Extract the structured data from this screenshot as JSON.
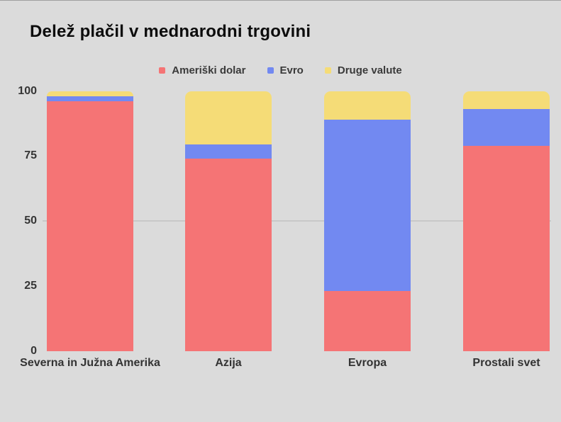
{
  "page": {
    "background": "#dbdbdb"
  },
  "title": "Delež plačil v mednarodni trgovini",
  "legend": {
    "items": [
      "Ameriški dolar",
      "Evro",
      "Druge valute"
    ]
  },
  "chart_data": {
    "type": "bar",
    "stacked": true,
    "title": "Delež plačil v mednarodni trgovini",
    "categories": [
      "Severna in Južna Amerika",
      "Azija",
      "Evropa",
      "Prostali svet"
    ],
    "series": [
      {
        "name": "Ameriški dolar",
        "color": "#f57475",
        "values": [
          96,
          74,
          23,
          79
        ]
      },
      {
        "name": "Evro",
        "color": "#7289f1",
        "values": [
          2,
          5.5,
          66,
          14
        ]
      },
      {
        "name": "Druge valute",
        "color": "#f5dc77",
        "values": [
          2,
          20.5,
          11,
          7
        ]
      }
    ],
    "xlabel": "",
    "ylabel": "",
    "ylim": [
      0,
      100
    ],
    "y_ticks": [
      0,
      25,
      50,
      75,
      100
    ],
    "grid_values": [
      50
    ],
    "grid_color": "#c8c8c8",
    "legend_position": "top",
    "text_color": "#3a3a3a",
    "title_color": "#0c0c0c"
  }
}
